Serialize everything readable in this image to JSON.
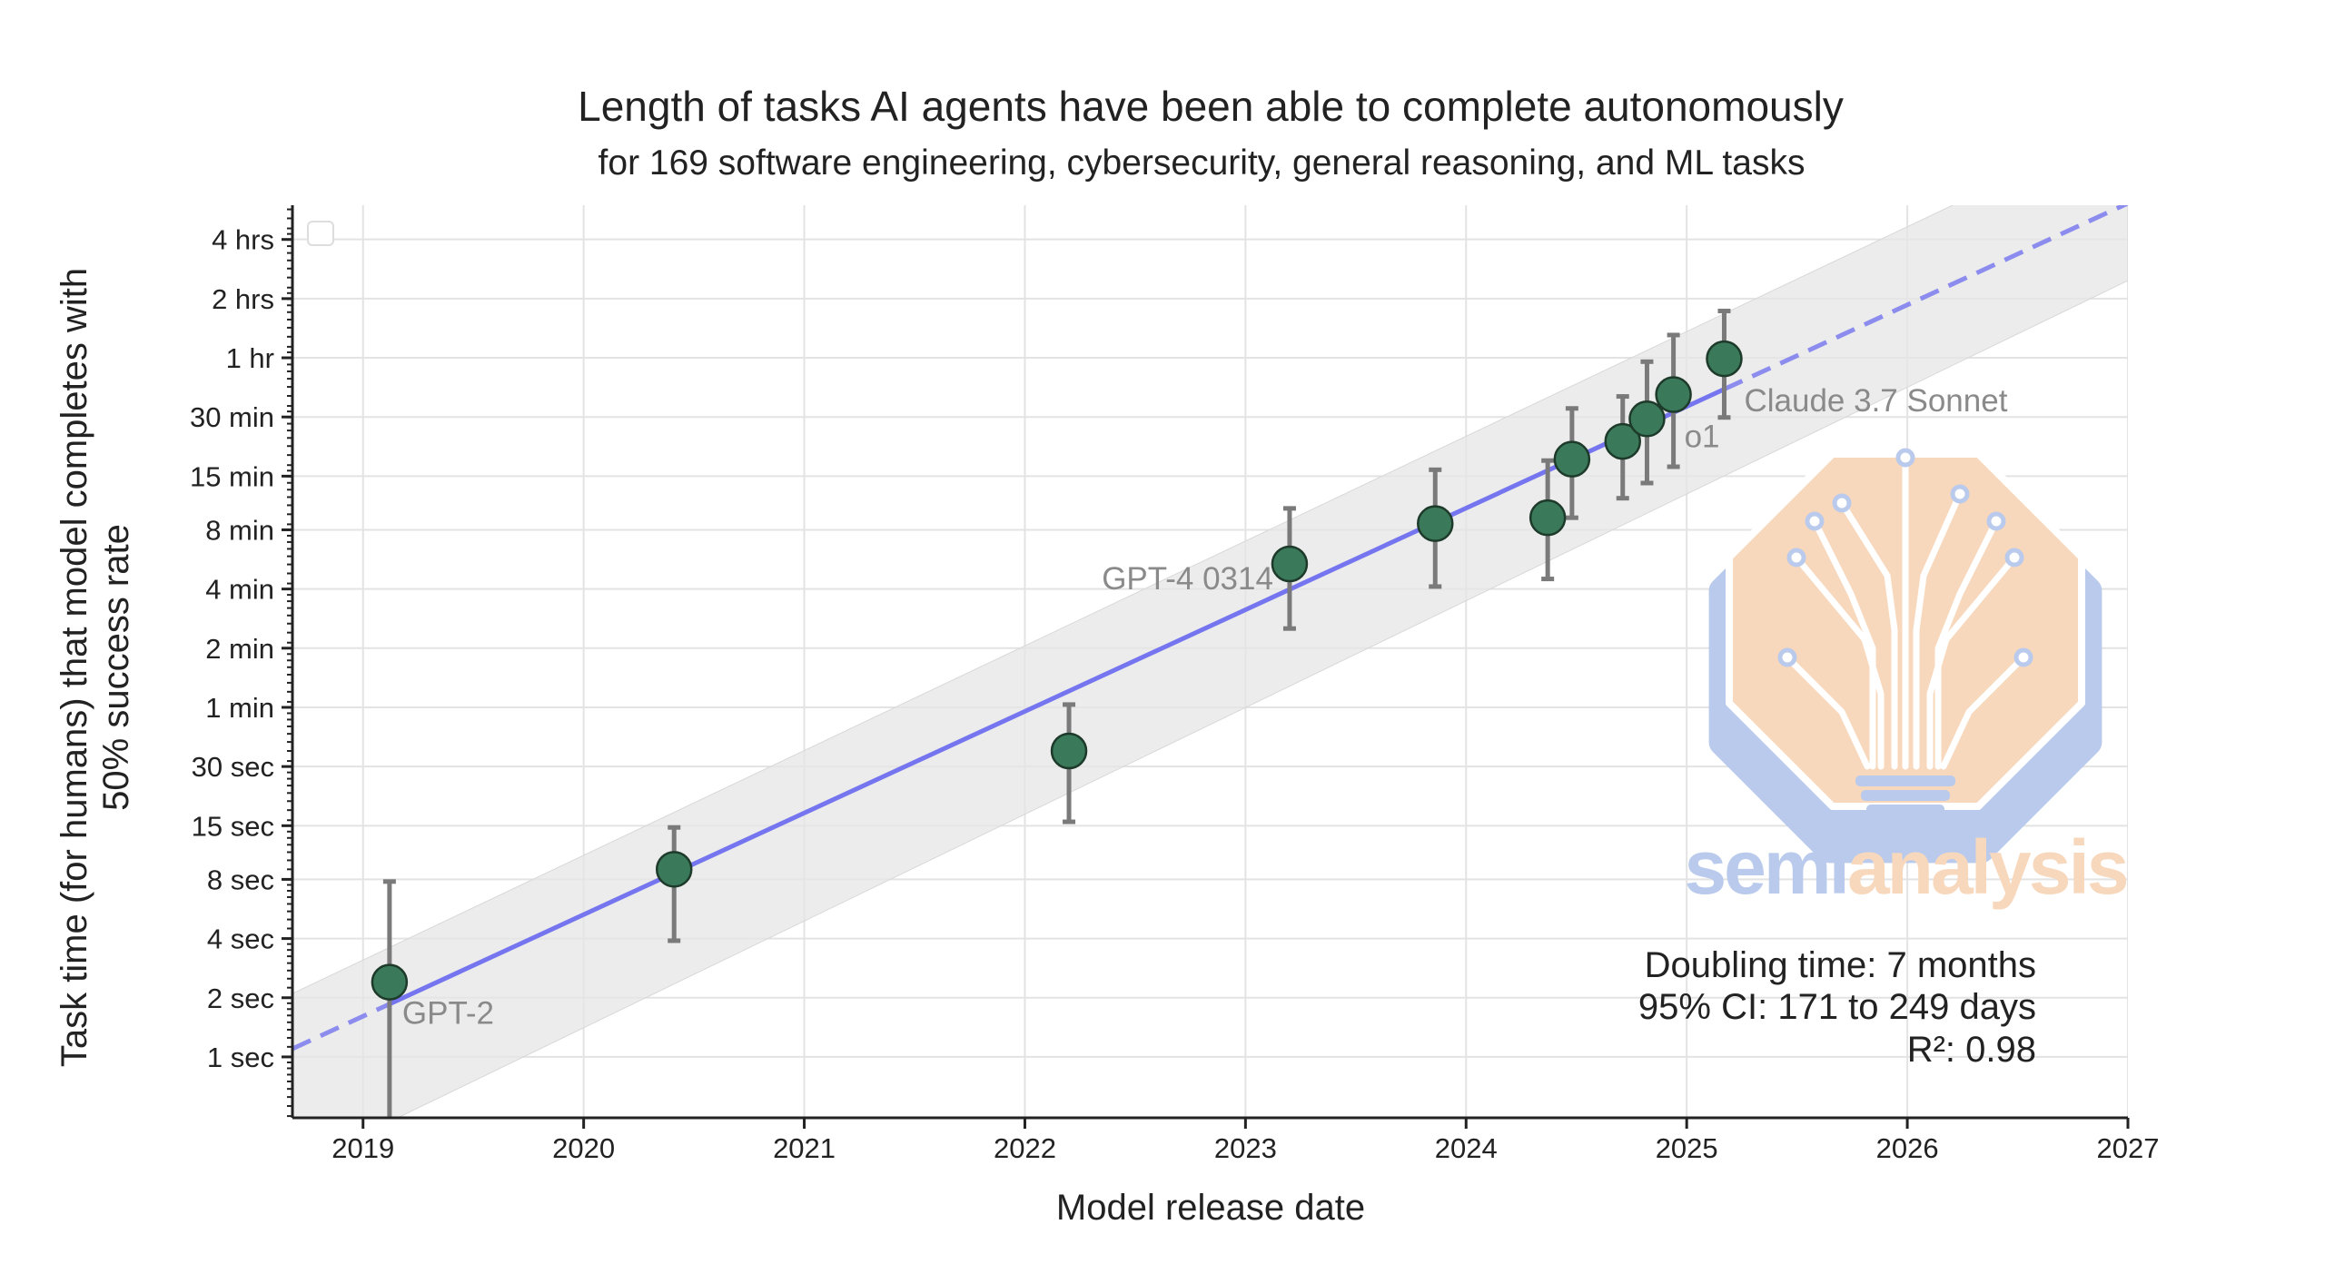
{
  "chart_data": {
    "type": "scatter",
    "title": "Length of tasks AI agents have been able to complete autonomously",
    "subtitle": "for 169 software engineering, cybersecurity, general reasoning, and ML tasks",
    "xlabel": "Model release date",
    "ylabel_lines": [
      "Task time (for humans) that model completes with",
      "50% success rate"
    ],
    "xlim": [
      2018.68,
      2027
    ],
    "ylim_seconds": [
      0.49,
      21500
    ],
    "yscale": "log",
    "grid": true,
    "x_ticks": [
      {
        "value": 2019,
        "label": "2019"
      },
      {
        "value": 2020,
        "label": "2020"
      },
      {
        "value": 2021,
        "label": "2021"
      },
      {
        "value": 2022,
        "label": "2022"
      },
      {
        "value": 2023,
        "label": "2023"
      },
      {
        "value": 2024,
        "label": "2024"
      },
      {
        "value": 2025,
        "label": "2025"
      },
      {
        "value": 2026,
        "label": "2026"
      },
      {
        "value": 2027,
        "label": "2027"
      }
    ],
    "y_ticks": [
      {
        "value": 1,
        "label": "1 sec"
      },
      {
        "value": 2,
        "label": "2 sec"
      },
      {
        "value": 4,
        "label": "4 sec"
      },
      {
        "value": 8,
        "label": "8 sec"
      },
      {
        "value": 15,
        "label": "15 sec"
      },
      {
        "value": 30,
        "label": "30 sec"
      },
      {
        "value": 60,
        "label": "1 min"
      },
      {
        "value": 120,
        "label": "2 min"
      },
      {
        "value": 240,
        "label": "4 min"
      },
      {
        "value": 480,
        "label": "8 min"
      },
      {
        "value": 900,
        "label": "15 min"
      },
      {
        "value": 1800,
        "label": "30 min"
      },
      {
        "value": 3600,
        "label": "1 hr"
      },
      {
        "value": 7200,
        "label": "2 hrs"
      },
      {
        "value": 14400,
        "label": "4 hrs"
      }
    ],
    "points": [
      {
        "x": 2019.12,
        "y": 2.4,
        "y_low": 0.3,
        "y_high": 7.8,
        "label": "GPT-2",
        "label_pos": "below-right"
      },
      {
        "x": 2020.41,
        "y": 9,
        "y_low": 3.9,
        "y_high": 14.7,
        "label": ""
      },
      {
        "x": 2022.2,
        "y": 36,
        "y_low": 15.7,
        "y_high": 62,
        "label": ""
      },
      {
        "x": 2023.2,
        "y": 322,
        "y_low": 151,
        "y_high": 617,
        "label": "GPT-4 0314",
        "label_pos": "left"
      },
      {
        "x": 2023.86,
        "y": 516,
        "y_low": 247,
        "y_high": 970,
        "label": ""
      },
      {
        "x": 2024.37,
        "y": 553,
        "y_low": 270,
        "y_high": 1080,
        "label": ""
      },
      {
        "x": 2024.48,
        "y": 1098,
        "y_low": 553,
        "y_high": 1990,
        "label": ""
      },
      {
        "x": 2024.71,
        "y": 1352,
        "y_low": 695,
        "y_high": 2290,
        "label": ""
      },
      {
        "x": 2024.82,
        "y": 1760,
        "y_low": 830,
        "y_high": 3440,
        "label": ""
      },
      {
        "x": 2024.94,
        "y": 2340,
        "y_low": 1005,
        "y_high": 4700,
        "label": "o1",
        "label_pos": "below-right"
      },
      {
        "x": 2025.17,
        "y": 3560,
        "y_low": 1790,
        "y_high": 6230,
        "label": "Claude 3.7 Sonnet",
        "label_pos": "right"
      }
    ],
    "trend": {
      "x": [
        2018.68,
        2027
      ],
      "y": [
        1.1,
        22000
      ],
      "solid_range": [
        2019.12,
        2025.17
      ],
      "ci_upper": [
        2.1,
        57000
      ],
      "ci_lower": [
        0.27,
        8900
      ]
    },
    "annotation_lines": [
      "Doubling time: 7 months",
      "95% CI: 171 to 249 days",
      "R²: 0.98"
    ],
    "colors": {
      "point_fill": "#3a7a5a",
      "point_edge": "#1d3a2a",
      "trend": "#7575f0",
      "ci_band": "#e6e6e6",
      "errorbar": "#7a7a7a",
      "grid": "#e3e3e3",
      "point_label": "#8a8a8a"
    }
  },
  "watermark": {
    "text_part1": "semi",
    "text_part2": "analysis",
    "colors": {
      "orange": "#f8d8bc",
      "blue": "#b9caec"
    }
  }
}
